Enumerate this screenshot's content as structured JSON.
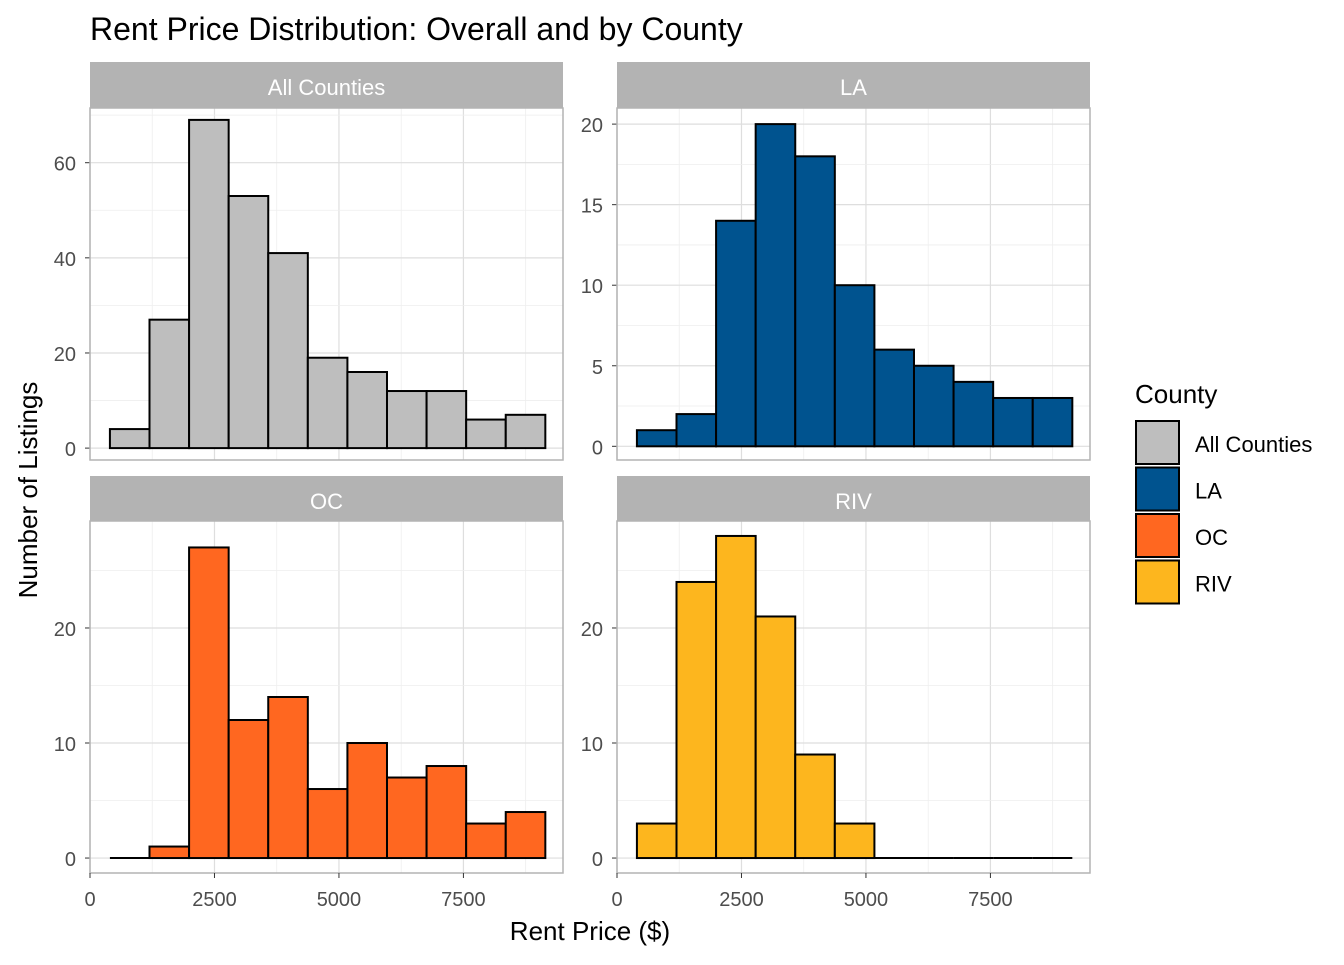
{
  "chart_data": {
    "type": "bar",
    "title": "Rent Price Distribution: Overall and by County",
    "xlabel": "Rent Price ($)",
    "ylabel": "Number of Listings",
    "xlim": [
      0,
      9500
    ],
    "x_ticks": [
      0,
      2500,
      5000,
      7500
    ],
    "x_tick_labels": [
      "0",
      "2500",
      "5000",
      "7500"
    ],
    "grid": true,
    "legend": {
      "title": "County",
      "position": "right",
      "entries": [
        {
          "name": "All Counties",
          "color": "#BEBEBE"
        },
        {
          "name": "LA",
          "color": "#00538F"
        },
        {
          "name": "OC",
          "color": "#FF6720"
        },
        {
          "name": "RIV",
          "color": "#FDB61E"
        }
      ]
    },
    "bin_edges": [
      400,
      1195,
      1990,
      2785,
      3580,
      4375,
      5170,
      5965,
      6760,
      7555,
      8350,
      9145
    ],
    "series": [
      {
        "name": "All Counties",
        "color": "#BEBEBE",
        "values": [
          4,
          27,
          69,
          53,
          41,
          19,
          16,
          12,
          12,
          6,
          7
        ],
        "ylim": [
          -2.5,
          71.5
        ],
        "y_ticks": [
          0,
          20,
          40,
          60
        ]
      },
      {
        "name": "LA",
        "color": "#00538F",
        "values": [
          1,
          2,
          14,
          20,
          18,
          10,
          6,
          5,
          4,
          3,
          3
        ],
        "ylim": [
          -0.85,
          21.0
        ],
        "y_ticks": [
          0,
          5,
          10,
          15,
          20
        ]
      },
      {
        "name": "OC",
        "color": "#FF6720",
        "values": [
          0,
          1,
          27,
          12,
          14,
          6,
          10,
          7,
          8,
          3,
          4
        ],
        "ylim": [
          -1.3,
          29.3
        ],
        "y_ticks": [
          0,
          10,
          20
        ]
      },
      {
        "name": "RIV",
        "color": "#FDB61E",
        "values": [
          3,
          24,
          28,
          21,
          9,
          3,
          0,
          0,
          0,
          0,
          0
        ],
        "ylim": [
          -1.3,
          29.3
        ],
        "y_ticks": [
          0,
          10,
          20
        ]
      }
    ]
  }
}
